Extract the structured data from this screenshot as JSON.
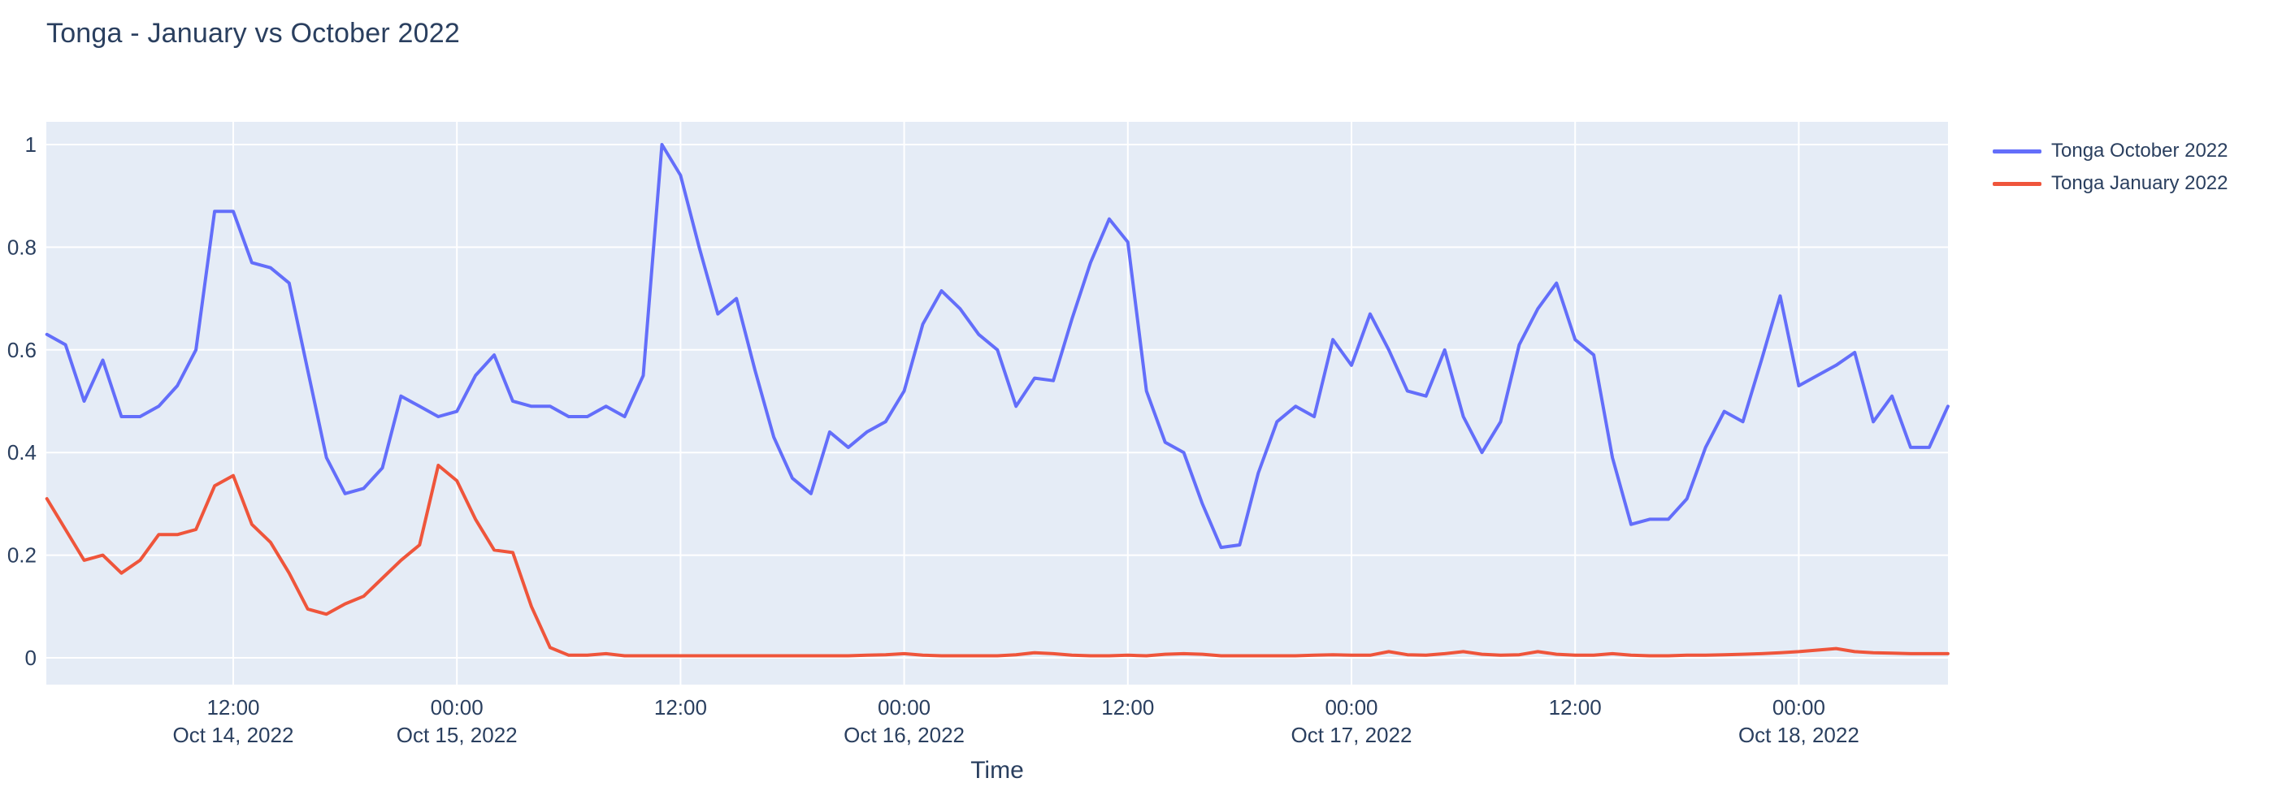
{
  "title": "Tonga - January vs October 2022",
  "colors": {
    "plot_background": "#E5ECF6",
    "grid": "#FFFFFF",
    "text": "#2a3f5f",
    "series_october": "#636EFA",
    "series_january": "#EF553B"
  },
  "legend": {
    "items": [
      {
        "label": "Tonga October 2022",
        "color": "#636EFA"
      },
      {
        "label": "Tonga January 2022",
        "color": "#EF553B"
      }
    ]
  },
  "chart_data": {
    "type": "line",
    "title": "Tonga - January vs October 2022",
    "xlabel": "Time",
    "ylabel": "",
    "grid": true,
    "legend_position": "top-right-outside",
    "ylim": [
      -0.05,
      1.05
    ],
    "y_ticks": [
      {
        "v": 0,
        "label": "0"
      },
      {
        "v": 0.2,
        "label": "0.2"
      },
      {
        "v": 0.4,
        "label": "0.4"
      },
      {
        "v": 0.6,
        "label": "0.6"
      },
      {
        "v": 0.8,
        "label": "0.8"
      },
      {
        "v": 1,
        "label": "1"
      }
    ],
    "x_start": "Oct 14, 2022 02:00",
    "x_step_hours": 1,
    "x_ticks": [
      {
        "i": 10,
        "line1": "12:00",
        "line2": "Oct 14, 2022"
      },
      {
        "i": 22,
        "line1": "00:00",
        "line2": "Oct 15, 2022"
      },
      {
        "i": 34,
        "line1": "12:00",
        "line2": ""
      },
      {
        "i": 46,
        "line1": "00:00",
        "line2": "Oct 16, 2022"
      },
      {
        "i": 58,
        "line1": "12:00",
        "line2": ""
      },
      {
        "i": 70,
        "line1": "00:00",
        "line2": "Oct 17, 2022"
      },
      {
        "i": 82,
        "line1": "12:00",
        "line2": ""
      },
      {
        "i": 94,
        "line1": "00:00",
        "line2": "Oct 18, 2022"
      }
    ],
    "series": [
      {
        "name": "Tonga October 2022",
        "color": "#636EFA",
        "values": [
          0.63,
          0.61,
          0.5,
          0.58,
          0.47,
          0.47,
          0.49,
          0.53,
          0.6,
          0.87,
          0.87,
          0.77,
          0.76,
          0.73,
          0.56,
          0.39,
          0.32,
          0.33,
          0.37,
          0.51,
          0.49,
          0.47,
          0.48,
          0.55,
          0.59,
          0.5,
          0.49,
          0.49,
          0.47,
          0.47,
          0.49,
          0.47,
          0.55,
          1.0,
          0.94,
          0.8,
          0.67,
          0.7,
          0.56,
          0.43,
          0.35,
          0.32,
          0.44,
          0.41,
          0.44,
          0.46,
          0.52,
          0.65,
          0.715,
          0.68,
          0.63,
          0.6,
          0.49,
          0.545,
          0.54,
          0.66,
          0.77,
          0.855,
          0.81,
          0.52,
          0.42,
          0.4,
          0.3,
          0.215,
          0.22,
          0.36,
          0.46,
          0.49,
          0.47,
          0.62,
          0.57,
          0.67,
          0.6,
          0.52,
          0.51,
          0.6,
          0.47,
          0.4,
          0.46,
          0.61,
          0.68,
          0.73,
          0.62,
          0.59,
          0.39,
          0.26,
          0.27,
          0.27,
          0.31,
          0.41,
          0.48,
          0.46,
          0.58,
          0.705,
          0.53,
          0.55,
          0.57,
          0.595,
          0.46,
          0.51,
          0.41,
          0.41,
          0.49
        ]
      },
      {
        "name": "Tonga January 2022",
        "color": "#EF553B",
        "values": [
          0.31,
          0.25,
          0.19,
          0.2,
          0.165,
          0.19,
          0.24,
          0.24,
          0.25,
          0.335,
          0.355,
          0.26,
          0.225,
          0.165,
          0.095,
          0.085,
          0.105,
          0.12,
          0.155,
          0.19,
          0.22,
          0.375,
          0.345,
          0.27,
          0.21,
          0.205,
          0.1,
          0.02,
          0.005,
          0.005,
          0.008,
          0.004,
          0.004,
          0.004,
          0.004,
          0.004,
          0.004,
          0.004,
          0.004,
          0.004,
          0.004,
          0.004,
          0.004,
          0.004,
          0.005,
          0.006,
          0.008,
          0.005,
          0.004,
          0.004,
          0.004,
          0.004,
          0.006,
          0.01,
          0.008,
          0.005,
          0.004,
          0.004,
          0.005,
          0.004,
          0.007,
          0.008,
          0.007,
          0.004,
          0.004,
          0.004,
          0.004,
          0.004,
          0.005,
          0.006,
          0.005,
          0.005,
          0.012,
          0.006,
          0.005,
          0.008,
          0.012,
          0.007,
          0.005,
          0.006,
          0.012,
          0.007,
          0.005,
          0.005,
          0.008,
          0.005,
          0.004,
          0.004,
          0.005,
          0.005,
          0.006,
          0.007,
          0.008,
          0.01,
          0.012,
          0.015,
          0.018,
          0.012,
          0.01,
          0.009,
          0.008,
          0.008,
          0.008
        ]
      }
    ]
  }
}
